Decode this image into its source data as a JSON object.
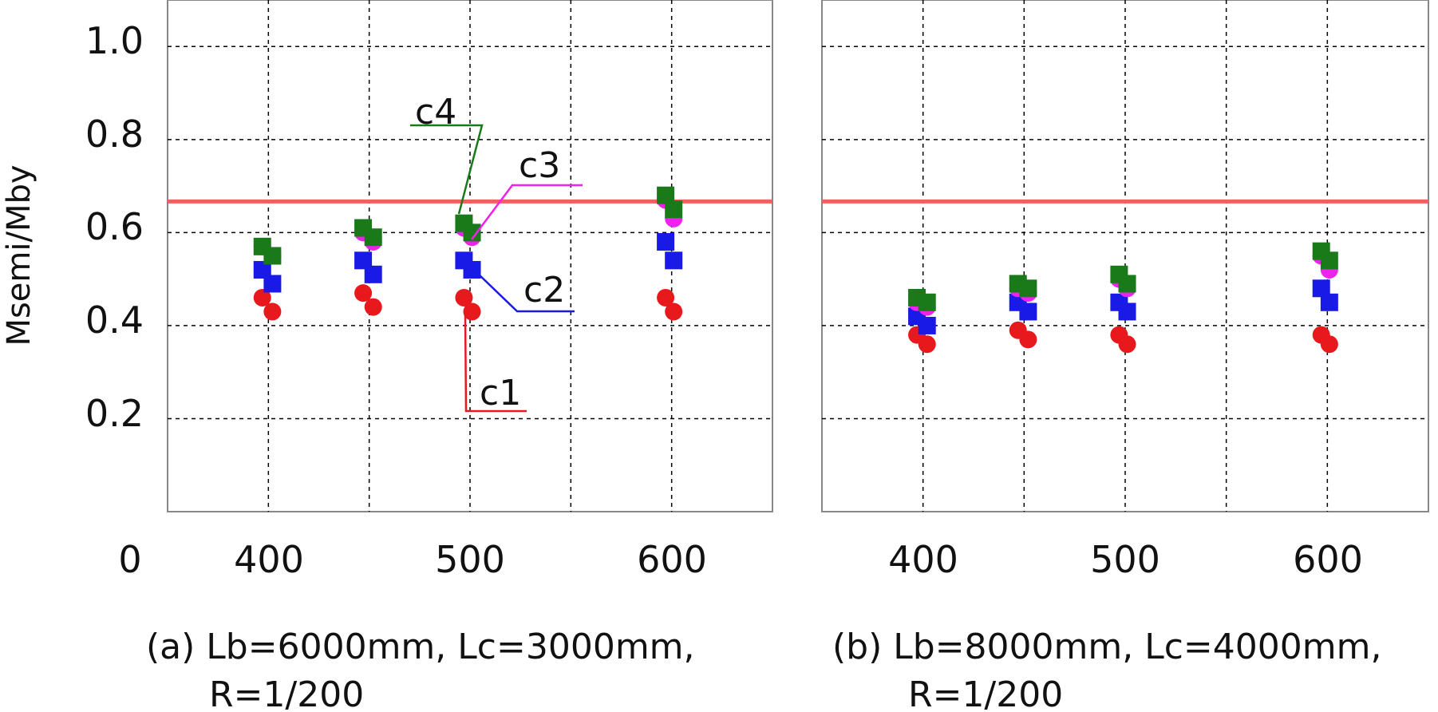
{
  "chart_data": [
    {
      "type": "scatter",
      "caption_line1": "(a) Lb=6000mm, Lc=3000mm,",
      "caption_line2": "R=1/200",
      "xlim": [
        350,
        650
      ],
      "ylim": [
        0,
        1.1
      ],
      "x_ticks": [
        "400",
        "500",
        "600"
      ],
      "x_origin_label": "0",
      "y_ticks": [
        "1.0",
        "0.8",
        "0.6",
        "0.4",
        "0.2"
      ],
      "ylabel": "Msemi/Mby",
      "reference_line": {
        "y": 0.667,
        "color": "#f0605e"
      },
      "series": [
        {
          "name": "c1",
          "marker": "circle",
          "color": "#e8191c",
          "points": [
            [
              397,
              0.46
            ],
            [
              402,
              0.43
            ],
            [
              447,
              0.47
            ],
            [
              452,
              0.44
            ],
            [
              497,
              0.46
            ],
            [
              501,
              0.43
            ],
            [
              597,
              0.46
            ],
            [
              601,
              0.43
            ]
          ]
        },
        {
          "name": "c2",
          "marker": "square",
          "color": "#1a1ae6",
          "points": [
            [
              397,
              0.52
            ],
            [
              402,
              0.49
            ],
            [
              447,
              0.54
            ],
            [
              452,
              0.51
            ],
            [
              497,
              0.54
            ],
            [
              501,
              0.52
            ],
            [
              597,
              0.58
            ],
            [
              601,
              0.54
            ]
          ]
        },
        {
          "name": "c3",
          "marker": "circle",
          "color": "#ee22ee",
          "points": [
            [
              397,
              0.57
            ],
            [
              402,
              0.55
            ],
            [
              447,
              0.6
            ],
            [
              452,
              0.58
            ],
            [
              497,
              0.61
            ],
            [
              501,
              0.59
            ],
            [
              597,
              0.67
            ],
            [
              601,
              0.63
            ]
          ]
        },
        {
          "name": "c4",
          "marker": "square",
          "color": "#1a7a1a",
          "points": [
            [
              397,
              0.57
            ],
            [
              402,
              0.55
            ],
            [
              447,
              0.61
            ],
            [
              452,
              0.59
            ],
            [
              497,
              0.62
            ],
            [
              501,
              0.6
            ],
            [
              597,
              0.68
            ],
            [
              601,
              0.65
            ]
          ]
        }
      ],
      "annotations": [
        {
          "label": "c4",
          "color": "#1a7a1a"
        },
        {
          "label": "c3",
          "color": "#ee22ee"
        },
        {
          "label": "c2",
          "color": "#1a1ae6"
        },
        {
          "label": "c1",
          "color": "#e8191c"
        }
      ]
    },
    {
      "type": "scatter",
      "caption_line1": "(b) Lb=8000mm, Lc=4000mm,",
      "caption_line2": "R=1/200",
      "xlim": [
        350,
        650
      ],
      "ylim": [
        0,
        1.1
      ],
      "x_ticks": [
        "400",
        "500",
        "600"
      ],
      "reference_line": {
        "y": 0.667,
        "color": "#f0605e"
      },
      "series": [
        {
          "marker": "circle",
          "color": "#e8191c",
          "points": [
            [
              397,
              0.38
            ],
            [
              402,
              0.36
            ],
            [
              447,
              0.39
            ],
            [
              452,
              0.37
            ],
            [
              497,
              0.38
            ],
            [
              501,
              0.36
            ],
            [
              597,
              0.38
            ],
            [
              601,
              0.36
            ]
          ]
        },
        {
          "marker": "square",
          "color": "#1a1ae6",
          "points": [
            [
              397,
              0.42
            ],
            [
              402,
              0.4
            ],
            [
              447,
              0.45
            ],
            [
              452,
              0.43
            ],
            [
              497,
              0.45
            ],
            [
              501,
              0.43
            ],
            [
              597,
              0.48
            ],
            [
              601,
              0.45
            ]
          ]
        },
        {
          "marker": "circle",
          "color": "#ee22ee",
          "points": [
            [
              397,
              0.45
            ],
            [
              402,
              0.44
            ],
            [
              447,
              0.48
            ],
            [
              452,
              0.47
            ],
            [
              497,
              0.5
            ],
            [
              501,
              0.48
            ],
            [
              597,
              0.55
            ],
            [
              601,
              0.52
            ]
          ]
        },
        {
          "marker": "square",
          "color": "#1a7a1a",
          "points": [
            [
              397,
              0.46
            ],
            [
              402,
              0.45
            ],
            [
              447,
              0.49
            ],
            [
              452,
              0.48
            ],
            [
              497,
              0.51
            ],
            [
              501,
              0.49
            ],
            [
              597,
              0.56
            ],
            [
              601,
              0.54
            ]
          ]
        }
      ]
    }
  ]
}
